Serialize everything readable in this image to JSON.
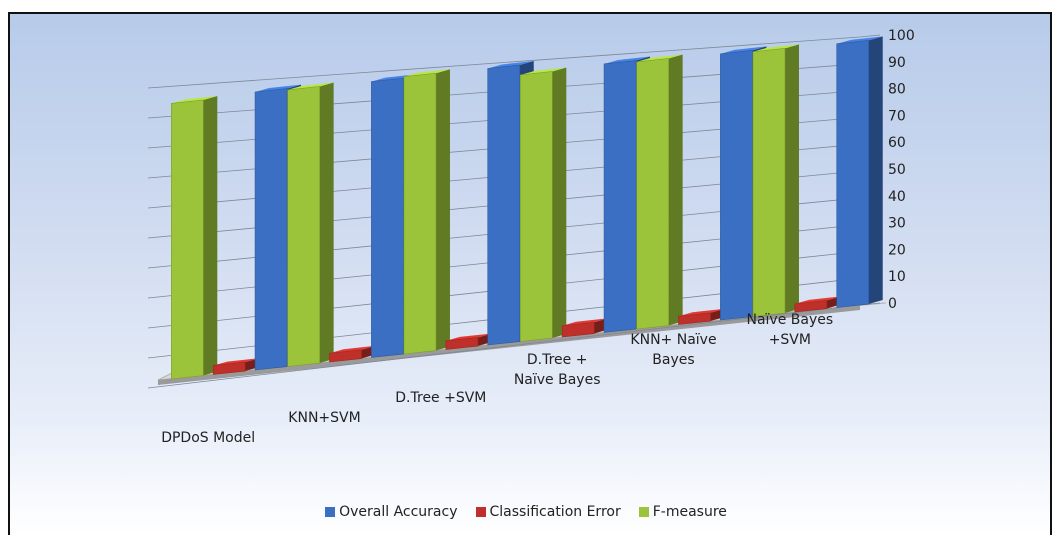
{
  "chart_data": {
    "type": "bar",
    "categories": [
      "DPDoS Model",
      "KNN+SVM",
      "D.Tree +SVM",
      "D.Tree +\nNaïve Bayes",
      "KNN+ Naïve\nBayes",
      "Naïve Bayes\n+SVM"
    ],
    "series": [
      {
        "name": "Overall Accuracy",
        "color": "#3a6fc4",
        "values": [
          94,
          95,
          97,
          96,
          97,
          98
        ]
      },
      {
        "name": "Classification Error",
        "color": "#c0302a",
        "values": [
          3,
          3,
          3,
          4,
          3,
          3
        ]
      },
      {
        "name": "F-measure",
        "color": "#9cc43a",
        "values": [
          92,
          94,
          96,
          94,
          96,
          97
        ]
      }
    ],
    "ylim": [
      0,
      100
    ],
    "yticks": [
      "0",
      "10",
      "20",
      "30",
      "40",
      "50",
      "60",
      "70",
      "80",
      "90",
      "100"
    ],
    "grid": true,
    "legend_position": "bottom"
  }
}
